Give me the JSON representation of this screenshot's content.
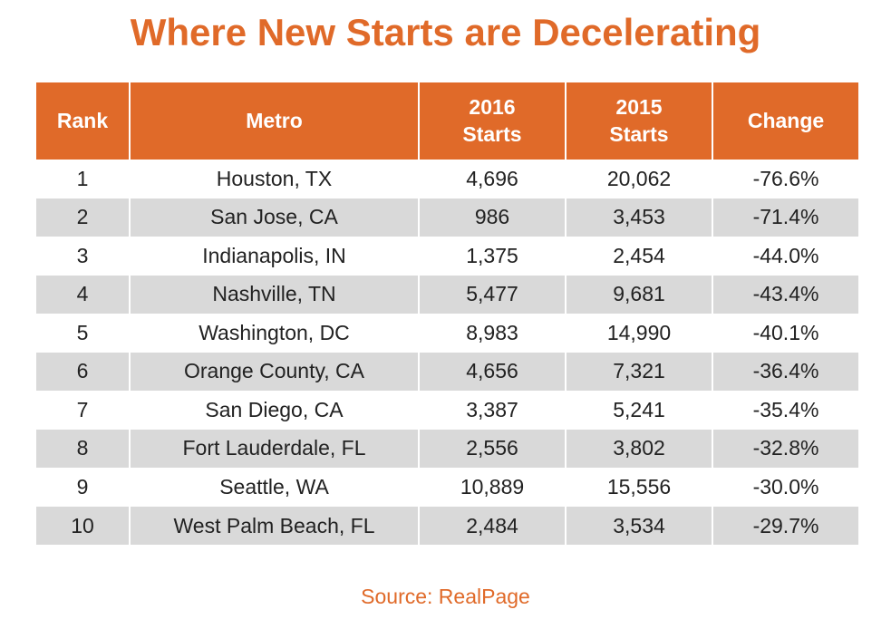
{
  "title": "Where New Starts are Decelerating",
  "source": "Source: RealPage",
  "colors": {
    "accent": "#e06a29",
    "header_text": "#ffffff",
    "row_shade": "#d9d9d9",
    "body_text": "#222222"
  },
  "chart_data": {
    "type": "table",
    "title": "Where New Starts are Decelerating",
    "columns": [
      "Rank",
      "Metro",
      "2016\nStarts",
      "2015\nStarts",
      "Change"
    ],
    "rows": [
      [
        "1",
        "Houston, TX",
        "4,696",
        "20,062",
        "-76.6%"
      ],
      [
        "2",
        "San Jose, CA",
        "986",
        "3,453",
        "-71.4%"
      ],
      [
        "3",
        "Indianapolis, IN",
        "1,375",
        "2,454",
        "-44.0%"
      ],
      [
        "4",
        "Nashville, TN",
        "5,477",
        "9,681",
        "-43.4%"
      ],
      [
        "5",
        "Washington, DC",
        "8,983",
        "14,990",
        "-40.1%"
      ],
      [
        "6",
        "Orange County, CA",
        "4,656",
        "7,321",
        "-36.4%"
      ],
      [
        "7",
        "San Diego, CA",
        "3,387",
        "5,241",
        "-35.4%"
      ],
      [
        "8",
        "Fort Lauderdale, FL",
        "2,556",
        "3,802",
        "-32.8%"
      ],
      [
        "9",
        "Seattle, WA",
        "10,889",
        "15,556",
        "-30.0%"
      ],
      [
        "10",
        "West Palm Beach, FL",
        "2,484",
        "3,534",
        "-29.7%"
      ]
    ],
    "source": "Source: RealPage"
  }
}
